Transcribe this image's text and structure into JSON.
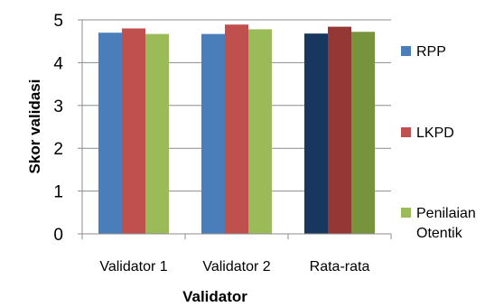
{
  "chart_data": {
    "type": "bar",
    "categories": [
      "Validator 1",
      "Validator 2",
      "Rata-rata"
    ],
    "series": [
      {
        "name": "RPP",
        "values": [
          4.7,
          4.67,
          4.68
        ],
        "color": "#4a7ebb",
        "highlight_color": "#17375e"
      },
      {
        "name": "LKPD",
        "values": [
          4.8,
          4.89,
          4.84
        ],
        "color": "#c0504d",
        "highlight_color": "#953735"
      },
      {
        "name": "Penilaian Otentik",
        "legend_lines": [
          "Penilaian",
          "Otentik"
        ],
        "values": [
          4.67,
          4.78,
          4.72
        ],
        "color": "#9bbb59",
        "highlight_color": "#77933c"
      }
    ],
    "highlight_category": "Rata-rata",
    "xlabel": "Validator",
    "ylabel": "Skor validasi",
    "ylim": [
      0,
      5
    ],
    "yticks": [
      0,
      1,
      2,
      3,
      4,
      5
    ],
    "grid": true,
    "legend_position": "right"
  }
}
